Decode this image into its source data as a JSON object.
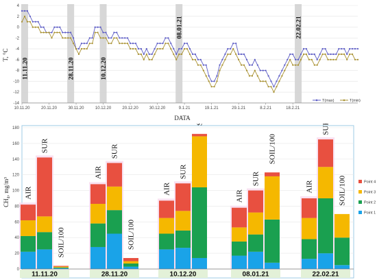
{
  "chart_data": [
    {
      "type": "line",
      "xlabel": "DATA",
      "ylabel": "T, °C",
      "ylim": [
        -14,
        4
      ],
      "xticks": [
        "10.11.20",
        "20.11.20",
        "30.11.20",
        "10.12.20",
        "20.12.20",
        "30.12.20",
        "9.1.21",
        "19.1.21",
        "29.1.21",
        "8.2.21",
        "18.2.21"
      ],
      "yticks": [
        4,
        2,
        0,
        -2,
        -4,
        -6,
        -8,
        -10,
        -12,
        -14
      ],
      "grid": true,
      "legend_position": "bottom-right",
      "sampling_dates": [
        "11.11.20",
        "28.11.20",
        "10.12.20",
        "08.01.21",
        "22.02.21"
      ],
      "series": [
        {
          "name": "T(max)",
          "color": "#5b5bc4",
          "values": [
            3,
            3,
            3,
            2,
            1,
            1,
            1,
            0,
            0,
            -1,
            -1,
            -1,
            0,
            0,
            0,
            -1,
            -1,
            -1,
            -1,
            -2,
            -4,
            -4,
            -3,
            -3,
            -3,
            -2,
            -2,
            0,
            0,
            0,
            -1,
            -1,
            -2,
            -2,
            -1,
            -1,
            -2,
            -2,
            -2,
            -2,
            -3,
            -3,
            -3,
            -4,
            -4,
            -5,
            -4,
            -5,
            -5,
            -4,
            -3,
            -3,
            -3,
            -2,
            -2,
            -3,
            -4,
            -5,
            -4,
            -4,
            -3,
            -3,
            -4,
            -5,
            -5,
            -6,
            -6,
            -7,
            -7,
            -9,
            -10,
            -10,
            -9,
            -7,
            -6,
            -5,
            -4,
            -4,
            -3,
            -3,
            -5,
            -5,
            -5,
            -6,
            -7,
            -7,
            -6,
            -7,
            -8,
            -8,
            -8,
            -9,
            -10,
            -11,
            -10,
            -9,
            -8,
            -7,
            -6,
            -5,
            -5,
            -6,
            -6,
            -5,
            -4,
            -4,
            -5,
            -5,
            -5,
            -6,
            -5,
            -4,
            -4,
            -5,
            -5,
            -5,
            -5,
            -4,
            -4,
            -4,
            -5,
            -4,
            -4,
            -4,
            -4
          ]
        },
        {
          "name": "T(min)",
          "color": "#a89030",
          "values": [
            1,
            2,
            1,
            1,
            0,
            0,
            0,
            -1,
            -1,
            -1,
            -1,
            -2,
            -1,
            -1,
            -1,
            -2,
            -2,
            -2,
            -2,
            -3,
            -4,
            -5,
            -4,
            -4,
            -4,
            -3,
            -3,
            -1,
            -1,
            -2,
            -2,
            -2,
            -3,
            -3,
            -2,
            -2,
            -3,
            -3,
            -3,
            -3,
            -4,
            -4,
            -4,
            -5,
            -5,
            -6,
            -5,
            -6,
            -6,
            -5,
            -4,
            -4,
            -4,
            -3,
            -3,
            -4,
            -5,
            -6,
            -5,
            -5,
            -4,
            -4,
            -5,
            -6,
            -6,
            -7,
            -7,
            -8,
            -9,
            -10,
            -11,
            -11,
            -10,
            -8,
            -7,
            -6,
            -5,
            -5,
            -4,
            -5,
            -6,
            -7,
            -7,
            -8,
            -9,
            -9,
            -8,
            -9,
            -10,
            -10,
            -10,
            -11,
            -11,
            -12,
            -11,
            -10,
            -9,
            -8,
            -7,
            -6,
            -7,
            -7,
            -7,
            -6,
            -5,
            -5,
            -6,
            -6,
            -7,
            -7,
            -6,
            -5,
            -5,
            -6,
            -6,
            -6,
            -6,
            -5,
            -5,
            -5,
            -6,
            -5,
            -5,
            -6,
            -6
          ]
        }
      ]
    },
    {
      "type": "bar",
      "stacked": true,
      "ylabel": "CH₄, mg/m³",
      "ylim": [
        0,
        180
      ],
      "yticks": [
        0,
        20,
        40,
        60,
        80,
        100,
        120,
        140,
        160,
        180
      ],
      "legend_position": "right",
      "bar_labels": [
        "AIR",
        "SUR",
        "SOIL/100"
      ],
      "groups": [
        "11.11.20",
        "28.11.20",
        "10.12.20",
        "08.01.21",
        "22.02.21"
      ],
      "series": [
        {
          "name": "Point 1",
          "color": "#1aa3e8",
          "values": [
            [
              22,
              25,
              1
            ],
            [
              28,
              45,
              3
            ],
            [
              25,
              27,
              14
            ],
            [
              17,
              22,
              8
            ],
            [
              13,
              20,
              5
            ]
          ]
        },
        {
          "name": "Point 2",
          "color": "#1aa050",
          "values": [
            [
              20,
              22,
              1
            ],
            [
              30,
              30,
              4
            ],
            [
              20,
              22,
              90
            ],
            [
              18,
              22,
              55
            ],
            [
              25,
              70,
              35
            ]
          ]
        },
        {
          "name": "Point 3",
          "color": "#f5b800",
          "values": [
            [
              20,
              20,
              1
            ],
            [
              25,
              30,
              3
            ],
            [
              20,
              25,
              65
            ],
            [
              18,
              28,
              55
            ],
            [
              27,
              40,
              30
            ]
          ]
        },
        {
          "name": "Point 4",
          "color": "#e85040",
          "values": [
            [
              20,
              75,
              1
            ],
            [
              25,
              30,
              4
            ],
            [
              22,
              35,
              3
            ],
            [
              25,
              28,
              5
            ],
            [
              25,
              35,
              0
            ]
          ]
        }
      ]
    }
  ]
}
